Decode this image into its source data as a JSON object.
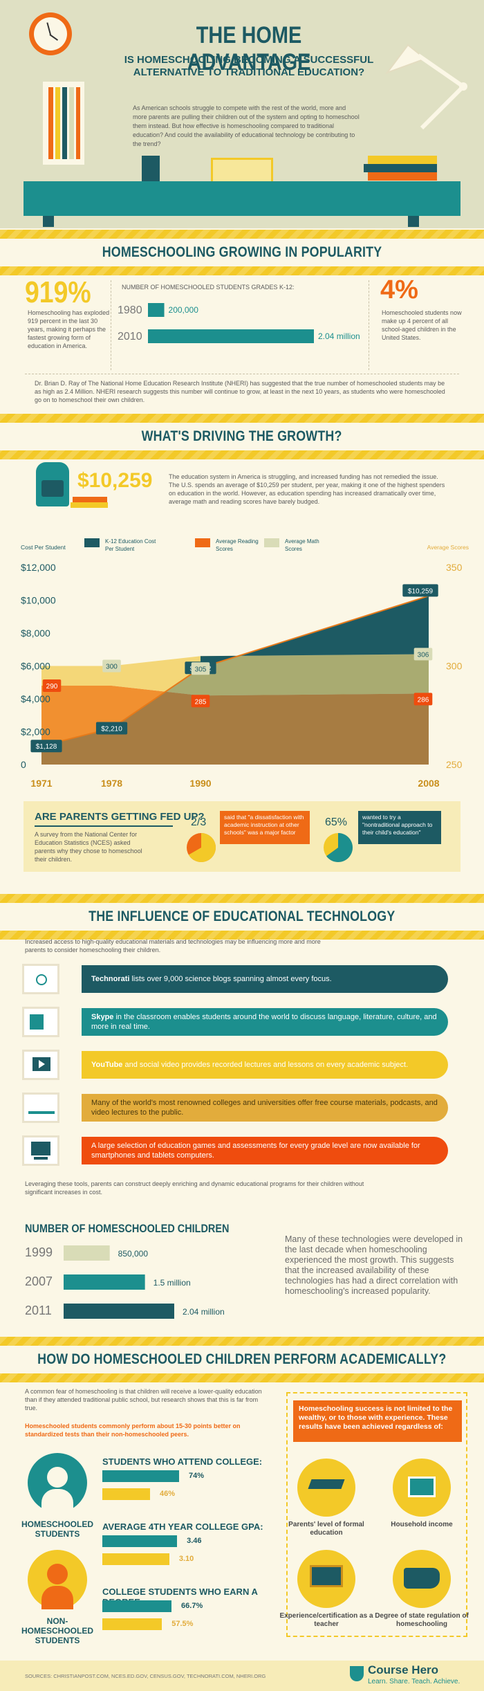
{
  "header": {
    "title": "THE HOME ADVANTAGE",
    "subtitle_line1": "IS HOMESCHOOLING BECOMING A SUCCESSFUL",
    "subtitle_line2": "ALTERNATIVE TO TRADITIONAL EDUCATION?",
    "intro": "As American schools struggle to compete with the rest of the world, more and more parents are pulling their children out of the system and opting to homeschool them instead. But how effective is homeschooling compared to traditional education? And could the availability of educational technology be contributing to the trend?"
  },
  "growing": {
    "banner": "HOMESCHOOLING GROWING IN POPULARITY",
    "big_pct": "919%",
    "big_pct_text": "Homeschooling has exploded 919 percent in the last 30 years, making it perhaps the fastest growing form of education in America.",
    "students_title": "NUMBER OF HOMESCHOOLED STUDENTS GRADES K-12:",
    "rows": [
      {
        "year": "1980",
        "label": "200,000",
        "value": 200000
      },
      {
        "year": "2010",
        "label": "2.04 million",
        "value": 2040000
      }
    ],
    "right_pct": "4%",
    "right_text": "Homeschooled students now make up 4 percent of all school-aged children in the United States.",
    "note": "Dr. Brian D. Ray of The National Home Education Research Institute (NHERI) has suggested that the true number of homeschooled students may be as high as 2.4 Million. NHERI research suggests this number will continue to grow, at least in the next 10 years, as students who were homeschooled go on to homeschool their own children."
  },
  "driving": {
    "banner": "WHAT'S DRIVING THE GROWTH?",
    "big_num": "$10,259",
    "text": "The education system in America is struggling, and increased funding has not remedied the issue. The U.S. spends an average of $10,259 per student, per year, making it one of the highest spenders on education in the world. However, as education spending has increased dramatically over time, average math and reading scores have barely budged."
  },
  "chart_data": {
    "type": "area",
    "x": [
      "1971",
      "1978",
      "1990",
      "2008"
    ],
    "ylabel_left": "Cost Per Student",
    "ylabel_right": "Average Scores",
    "left_ticks": [
      "$12,000",
      "$10,000",
      "$8,000",
      "$6,000",
      "$4,000",
      "$2,000",
      "0"
    ],
    "right_ticks": [
      "350",
      "300",
      "250"
    ],
    "ylim_left": [
      0,
      12000
    ],
    "ylim_right": [
      250,
      350
    ],
    "series": [
      {
        "name": "K-12 Education Cost Per Student",
        "axis": "left",
        "color": "#1d5a63",
        "values": [
          1128,
          2210,
          5882,
          10259
        ],
        "labels": [
          "$1,128",
          "$2,210",
          "$5,882",
          "$10,259"
        ]
      },
      {
        "name": "Average Reading Scores",
        "axis": "right",
        "color": "#ef6a16",
        "values": [
          290,
          290,
          285,
          286
        ],
        "labels": [
          "290",
          "",
          "285",
          "286"
        ]
      },
      {
        "name": "Average Math Scores",
        "axis": "right",
        "color": "#d9dcb7",
        "values": [
          300,
          300,
          305,
          306
        ],
        "labels": [
          "",
          "300",
          "305",
          "306"
        ]
      }
    ]
  },
  "fedup": {
    "title": "ARE PARENTS GETTING FED UP?",
    "text": "A survey from the National Center for Education Statistics (NCES) asked parents why they chose to homeschool their children.",
    "stat1": "2/3",
    "stat1_text": "said that \"a dissatisfaction with academic instruction at other schools\" was a major factor",
    "stat2": "65%",
    "stat2_text": "wanted to try a \"nontraditional approach to their child's education\"",
    "pie1_fraction": 0.667,
    "pie2_fraction": 0.65
  },
  "tech": {
    "banner": "THE INFLUENCE OF EDUCATIONAL TECHNOLOGY",
    "intro": "Increased access to high-quality educational materials and technologies may be influencing more and more parents to consider homeschooling their children.",
    "items": [
      {
        "bold": "Technorati",
        "text": " lists over 9,000 science blogs spanning almost every focus."
      },
      {
        "bold": "Skype",
        "text": " in the classroom enables students around the world to discuss language, literature, culture, and more in real time."
      },
      {
        "bold": "YouTube",
        "text": " and social video provides recorded lectures and lessons on every academic subject."
      },
      {
        "bold": "",
        "text": "Many of the world's most renowned colleges and universities offer free course materials, podcasts, and video lectures to the public."
      },
      {
        "bold": "",
        "text": "A large selection of education games and assessments for every grade level are now available for smartphones and tablets computers."
      }
    ],
    "outro": "Leveraging these tools, parents can construct deeply enriching and dynamic educational programs for their children without significant increases in cost.",
    "count_title": "NUMBER OF HOMESCHOOLED CHILDREN",
    "counts": [
      {
        "year": "1999",
        "label": "850,000",
        "value": 850000
      },
      {
        "year": "2007",
        "label": "1.5 million",
        "value": 1500000
      },
      {
        "year": "2011",
        "label": "2.04 million",
        "value": 2040000
      }
    ],
    "count_text": "Many of these technologies were developed in the last decade when homeschooling experienced the most growth. This suggests that the increased availability of these technologies has had a direct correlation with homeschooling's increased popularity."
  },
  "perform": {
    "banner": "HOW DO HOMESCHOOLED CHILDREN PERFORM ACADEMICALLY?",
    "intro": "A common fear of homeschooling is that children will receive a lower-quality education than if they attended traditional public school, but research shows that this is far from true.",
    "highlight": "Homeschooled students commonly perform about 15-30 points better on standardized tests than their non-homeschooled peers.",
    "homeschooled_label": "HOMESCHOOLED STUDENTS",
    "non_label": "NON-HOMESCHOOLED STUDENTS",
    "stats": [
      {
        "title": "STUDENTS WHO ATTEND COLLEGE:",
        "a_label": "74%",
        "a": 74,
        "b_label": "46%",
        "b": 46,
        "max": 100
      },
      {
        "title": "AVERAGE 4TH YEAR COLLEGE GPA:",
        "a_label": "3.46",
        "a": 3.46,
        "b_label": "3.10",
        "b": 3.1,
        "max": 4.8
      },
      {
        "title": "COLLEGE STUDENTS WHO EARN A DEGREE:",
        "a_label": "66.7%",
        "a": 66.7,
        "b_label": "57.5%",
        "b": 57.5,
        "max": 100
      }
    ],
    "box_title": "Homeschooling success is not limited to the wealthy, or to those with experience. These results have been achieved regardless of:",
    "factors": [
      "Parents' level of formal education",
      "Household income",
      "Experience/certification as a teacher",
      "Degree of state regulation of homeschooling"
    ]
  },
  "footer": {
    "sources": "SOURCES: CHRISTIANPOST.COM, NCES.ED.GOV, CENSUS.GOV, TECHNORATI.COM, NHERI.ORG",
    "brand": "Course Hero",
    "tagline": "Learn. Share. Teach. Achieve."
  }
}
